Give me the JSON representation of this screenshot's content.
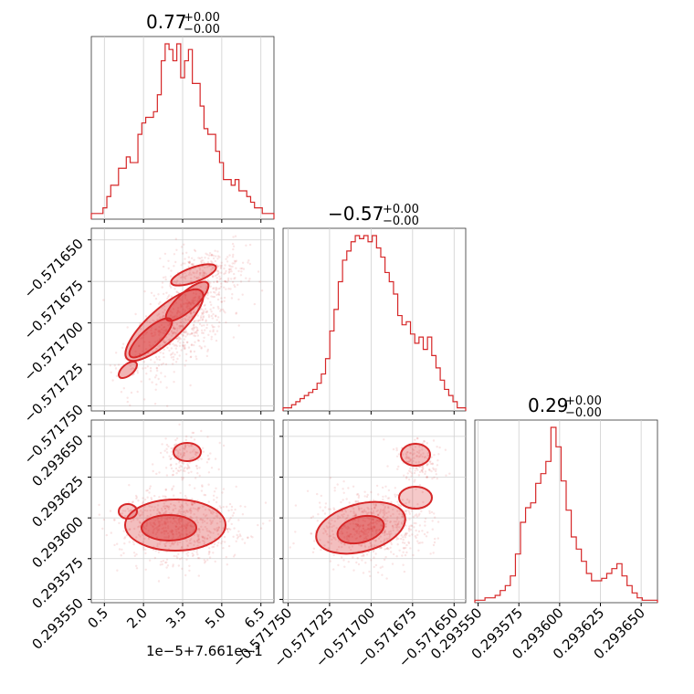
{
  "chart_data": {
    "type": "corner",
    "color": "#d62728",
    "parameters": [
      {
        "title_value": "0.77",
        "title_plus": "+0.00",
        "title_minus": "−0.00"
      },
      {
        "title_value": "−0.57",
        "title_plus": "+0.00",
        "title_minus": "−0.00"
      },
      {
        "title_value": "0.29",
        "title_plus": "+0.00",
        "title_minus": "−0.00"
      }
    ],
    "axes": {
      "p0": {
        "range": [
          0.0,
          7.0
        ],
        "ticks": [
          0.5,
          2.0,
          3.5,
          5.0,
          6.5
        ],
        "tick_labels": [
          "0.5",
          "2.0",
          "3.5",
          "5.0",
          "6.5"
        ],
        "offset_label": "1e−5+7.661e−1"
      },
      "p1": {
        "range": [
          -0.571753,
          -0.571643
        ],
        "ticks": [
          -0.57175,
          -0.571725,
          -0.5717,
          -0.571675,
          -0.57165
        ],
        "tick_labels": [
          "−0.571750",
          "−0.571725",
          "−0.571700",
          "−0.571675",
          "−0.571650"
        ]
      },
      "p2": {
        "range": [
          0.293548,
          0.29366
        ],
        "ticks": [
          0.29355,
          0.293575,
          0.2936,
          0.293625,
          0.29365
        ],
        "tick_labels": [
          "0.293550",
          "0.293575",
          "0.293600",
          "0.293625",
          "0.293650"
        ]
      }
    },
    "histograms": {
      "p0": [
        1,
        1,
        1,
        2,
        4,
        6,
        6,
        9,
        9,
        11,
        10,
        10,
        15,
        17,
        18,
        18,
        19,
        22,
        28,
        31,
        30,
        28,
        31,
        25,
        28,
        30,
        24,
        24,
        20,
        16,
        15,
        15,
        12,
        10,
        7,
        7,
        6,
        7,
        5,
        5,
        4,
        3,
        2,
        2,
        1,
        1,
        1
      ],
      "p1": [
        1,
        1,
        2,
        3,
        4,
        5,
        6,
        7,
        9,
        12,
        17,
        26,
        33,
        42,
        49,
        52,
        55,
        57,
        56,
        57,
        55,
        57,
        53,
        50,
        45,
        42,
        38,
        31,
        28,
        29,
        25,
        22,
        24,
        20,
        24,
        18,
        14,
        10,
        7,
        5,
        3,
        1,
        1
      ],
      "p2": [
        1,
        1,
        2,
        2,
        3,
        5,
        7,
        11,
        20,
        33,
        39,
        41,
        49,
        53,
        58,
        72,
        64,
        50,
        38,
        27,
        22,
        17,
        12,
        9,
        9,
        10,
        12,
        14,
        16,
        11,
        7,
        4,
        2,
        1,
        1,
        1
      ]
    },
    "grid": true
  }
}
